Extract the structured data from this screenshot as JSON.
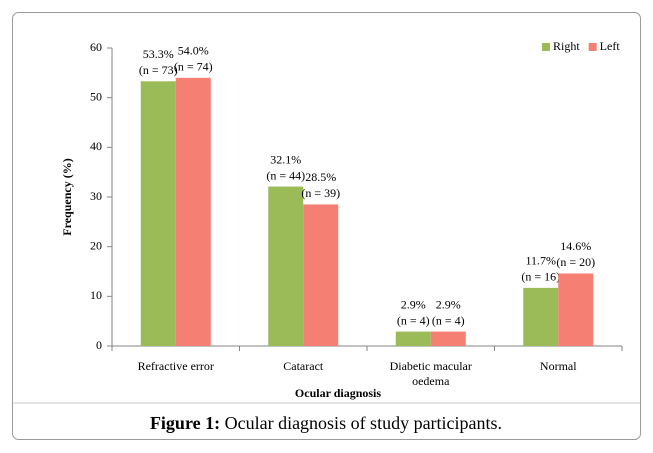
{
  "chart_data": {
    "type": "bar",
    "x_label": "Ocular diagnosis",
    "y_label": "Frequency (%)",
    "categories": [
      "Refractive error",
      "Cataract",
      "Diabetic macular oedema",
      "Normal"
    ],
    "series": [
      {
        "name": "Right",
        "color": "#9bbb59",
        "values": [
          53.3,
          32.1,
          2.9,
          11.7
        ],
        "value_labels": [
          [
            "53.3%",
            "(n = 73)"
          ],
          [
            "32.1%",
            "(n = 44)"
          ],
          [
            "2.9%",
            "(n = 4)"
          ],
          [
            "11.7%",
            "(n = 16)"
          ]
        ]
      },
      {
        "name": "Left",
        "color": "#f47f72",
        "values": [
          54.0,
          28.5,
          2.9,
          14.6
        ],
        "value_labels": [
          [
            "54.0%",
            "(n = 74)"
          ],
          [
            "28.5%",
            "(n = 39)"
          ],
          [
            "2.9%",
            "(n = 4)"
          ],
          [
            "14.6%",
            "(n = 20)"
          ]
        ]
      }
    ],
    "ylim": [
      0,
      60
    ],
    "yticks": [
      0,
      10,
      20,
      30,
      40,
      50,
      60
    ],
    "grid": false,
    "legend": "top-right",
    "caption_label": "Figure 1:",
    "caption": "Ocular diagnosis of study participants."
  }
}
